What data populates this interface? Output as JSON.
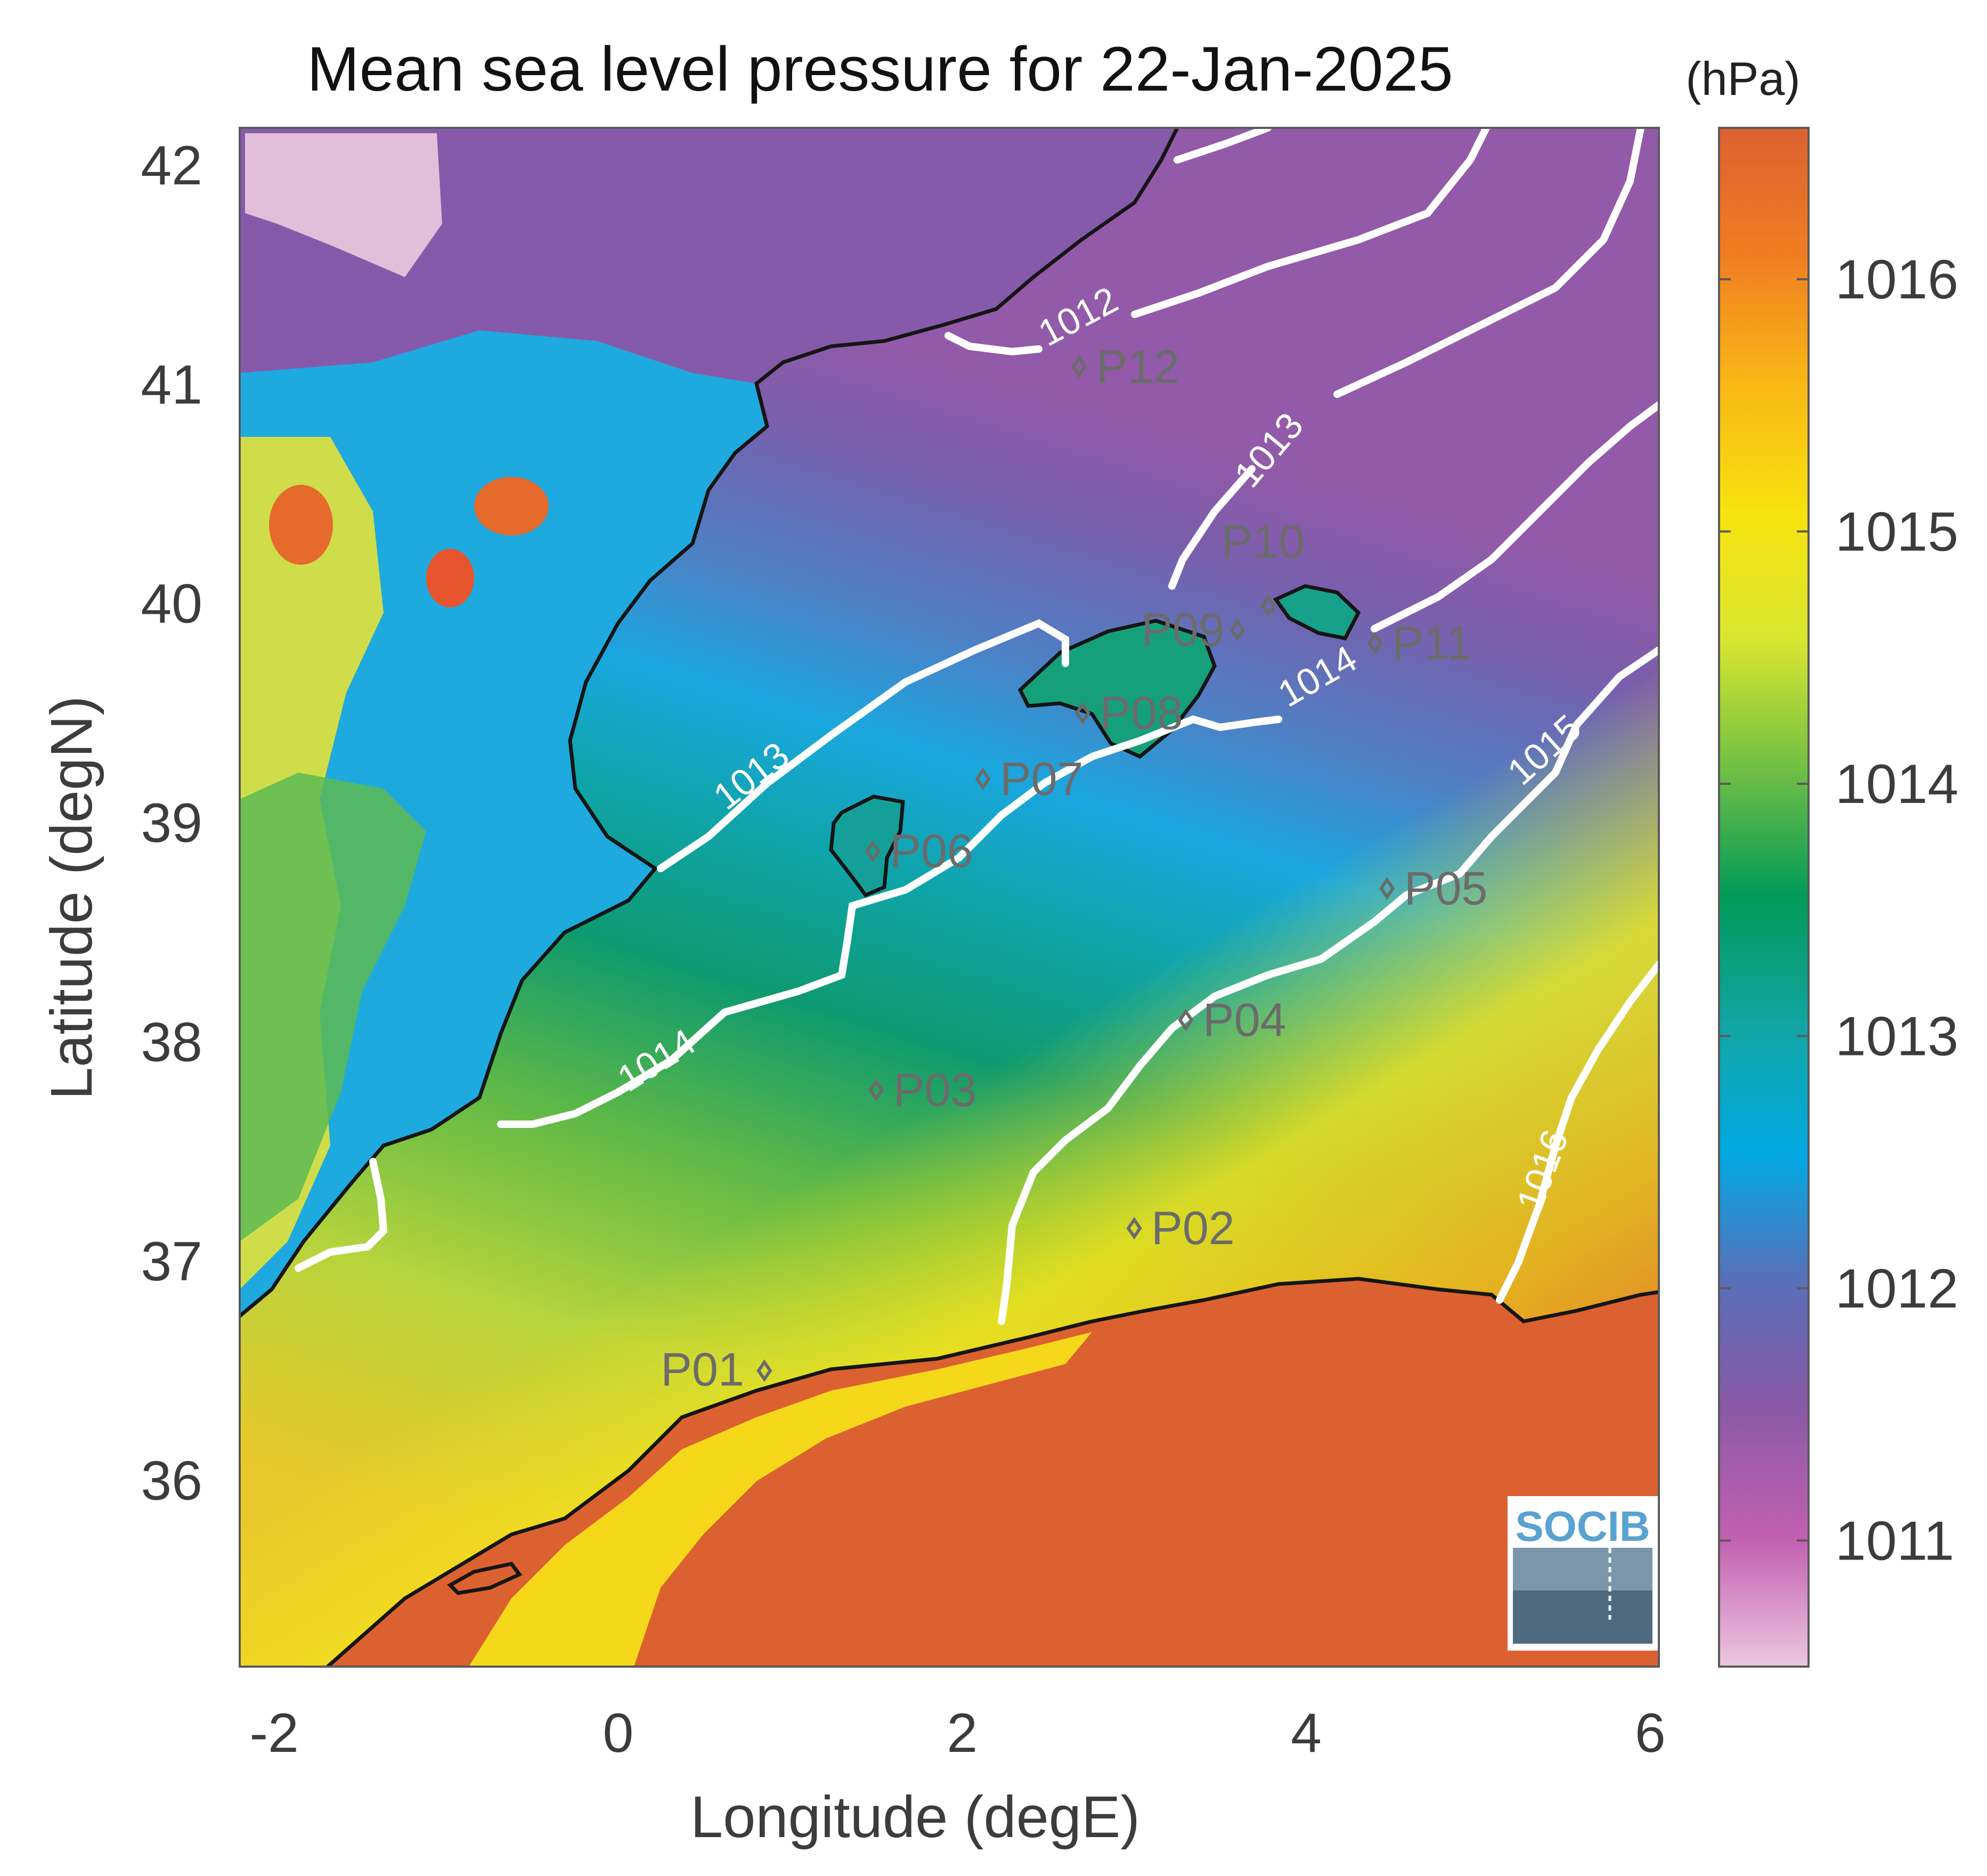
{
  "title": "Mean sea level pressure for 22-Jan-2025",
  "colorbar": {
    "unit": "(hPa)",
    "ticks": [
      "1011",
      "1012",
      "1013",
      "1014",
      "1015",
      "1016"
    ],
    "range": [
      1010.5,
      1016.6
    ],
    "colors": [
      "#ecc7e0",
      "#c25fb0",
      "#8b5aa7",
      "#5a6fb9",
      "#00a8e3",
      "#12a5a3",
      "#009a58",
      "#70bf44",
      "#d8e630",
      "#f7e20e",
      "#f9b816",
      "#f07d21",
      "#dc6130"
    ]
  },
  "axes": {
    "xlabel": "Longitude (degE)",
    "ylabel": "Latitude (degN)",
    "xticks": [
      "-2",
      "0",
      "2",
      "4",
      "6"
    ],
    "yticks": [
      "42",
      "41",
      "40",
      "39",
      "38",
      "37",
      "36"
    ],
    "xlim": [
      -2.2,
      6.05
    ],
    "ylim": [
      35.15,
      42.17
    ]
  },
  "contours": [
    "1012",
    "1013",
    "1013",
    "1014",
    "1014",
    "1015",
    "1016"
  ],
  "points": [
    {
      "name": "P01",
      "lon": 0.85,
      "lat": 36.5
    },
    {
      "name": "P02",
      "lon": 3.0,
      "lat": 37.15
    },
    {
      "name": "P03",
      "lon": 1.5,
      "lat": 37.78
    },
    {
      "name": "P04",
      "lon": 3.3,
      "lat": 38.1
    },
    {
      "name": "P05",
      "lon": 4.47,
      "lat": 38.7
    },
    {
      "name": "P06",
      "lon": 1.48,
      "lat": 38.87
    },
    {
      "name": "P07",
      "lon": 2.12,
      "lat": 39.2
    },
    {
      "name": "P08",
      "lon": 2.7,
      "lat": 39.5
    },
    {
      "name": "P09",
      "lon": 3.6,
      "lat": 39.88
    },
    {
      "name": "P10",
      "lon": 3.78,
      "lat": 39.99
    },
    {
      "name": "P11",
      "lon": 4.4,
      "lat": 39.82
    },
    {
      "name": "P12",
      "lon": 2.68,
      "lat": 41.08
    }
  ],
  "logo": "SOCIB"
}
